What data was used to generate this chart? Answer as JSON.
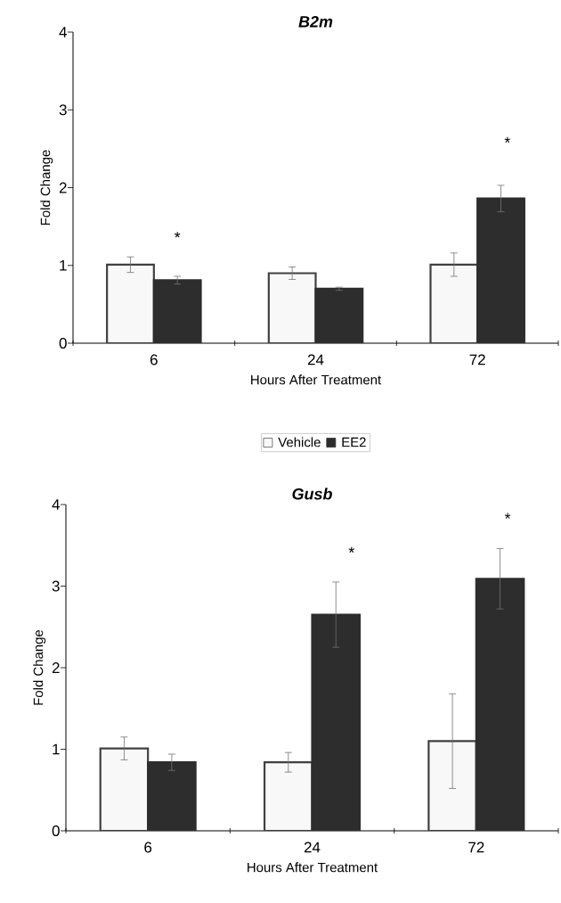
{
  "chart_data": [
    {
      "type": "bar",
      "title": "B2m",
      "xlabel": "Hours After Treatment",
      "ylabel": "Fold Change",
      "categories": [
        "6",
        "24",
        "72"
      ],
      "series": [
        {
          "name": "Vehicle",
          "color": "#f8f8f8",
          "values": [
            1.01,
            0.9,
            1.01
          ],
          "errors": [
            0.1,
            0.08,
            0.15
          ]
        },
        {
          "name": "EE2",
          "color": "#2d2d2d",
          "values": [
            0.81,
            0.7,
            1.86
          ],
          "errors": [
            0.05,
            0.02,
            0.17
          ]
        }
      ],
      "ylim": [
        0,
        4
      ],
      "yticks": [
        0,
        1,
        2,
        3,
        4
      ],
      "legend": "bottom",
      "annotations": [
        "*",
        "*"
      ]
    },
    {
      "type": "bar",
      "title": "Gusb",
      "xlabel": "Hours After Treatment",
      "ylabel": "Fold Change",
      "categories": [
        "6",
        "24",
        "72"
      ],
      "series": [
        {
          "color": "#f8f8f8",
          "values": [
            1.01,
            0.84,
            1.1
          ],
          "errors": [
            0.14,
            0.12,
            0.58
          ]
        },
        {
          "color": "#2d2d2d",
          "values": [
            0.84,
            2.65,
            3.09
          ],
          "errors": [
            0.1,
            0.4,
            0.37
          ]
        }
      ],
      "ylim": [
        0,
        4
      ],
      "yticks": [
        0,
        1,
        2,
        3,
        4
      ],
      "annotations": [
        "*",
        "*"
      ]
    }
  ]
}
